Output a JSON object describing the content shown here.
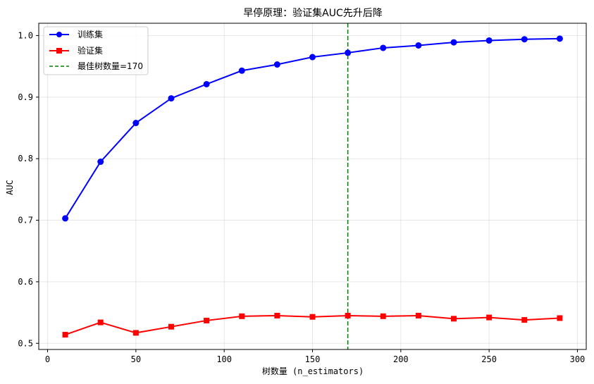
{
  "chart_data": {
    "type": "line",
    "title": "早停原理：验证集AUC先升后降",
    "xlabel": "树数量 (n_estimators)",
    "ylabel": "AUC",
    "xlim": [
      -5,
      305
    ],
    "ylim": [
      0.49,
      1.02
    ],
    "xticks": [
      0,
      50,
      100,
      150,
      200,
      250,
      300
    ],
    "yticks": [
      0.5,
      0.6,
      0.7,
      0.8,
      0.9,
      1.0
    ],
    "ytick_labels": [
      "0.5",
      "0.6",
      "0.7",
      "0.8",
      "0.9",
      "1.0"
    ],
    "grid": true,
    "legend_position": "top-left",
    "x": [
      10,
      30,
      50,
      70,
      90,
      110,
      130,
      150,
      170,
      190,
      210,
      230,
      250,
      270,
      290
    ],
    "series": [
      {
        "name": "训练集",
        "color": "#0000ff",
        "marker": "circle",
        "values": [
          0.703,
          0.795,
          0.858,
          0.898,
          0.921,
          0.943,
          0.953,
          0.965,
          0.972,
          0.98,
          0.984,
          0.989,
          0.992,
          0.994,
          0.995
        ]
      },
      {
        "name": "验证集",
        "color": "#ff0000",
        "marker": "square",
        "values": [
          0.514,
          0.534,
          0.517,
          0.527,
          0.537,
          0.544,
          0.545,
          0.543,
          0.545,
          0.544,
          0.545,
          0.54,
          0.542,
          0.538,
          0.541
        ]
      }
    ],
    "reference_line": {
      "name": "最佳树数量=170",
      "x": 170,
      "color": "#008000",
      "style": "dashed"
    }
  }
}
